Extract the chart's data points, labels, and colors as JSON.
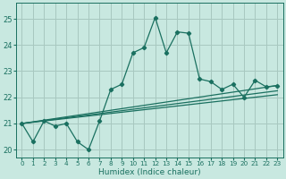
{
  "xlabel": "Humidex (Indice chaleur)",
  "bg_color": "#c8e8e0",
  "grid_color": "#a8c8c0",
  "line_color": "#1a7060",
  "ylim": [
    19.7,
    25.6
  ],
  "xlim": [
    -0.5,
    23.5
  ],
  "yticks": [
    20,
    21,
    22,
    23,
    24,
    25
  ],
  "xticks": [
    0,
    1,
    2,
    3,
    4,
    5,
    6,
    7,
    8,
    9,
    10,
    11,
    12,
    13,
    14,
    15,
    16,
    17,
    18,
    19,
    20,
    21,
    22,
    23
  ],
  "series1_x": [
    0,
    1,
    2,
    3,
    4,
    5,
    6,
    7,
    8,
    9,
    10,
    11,
    12,
    13,
    14,
    15,
    16,
    17,
    18,
    19,
    20,
    21,
    22,
    23
  ],
  "series1_y": [
    21.0,
    20.3,
    21.1,
    20.9,
    21.0,
    20.3,
    20.0,
    21.1,
    22.3,
    22.5,
    23.7,
    23.9,
    25.05,
    23.7,
    24.5,
    24.45,
    22.7,
    22.6,
    22.3,
    22.5,
    22.0,
    22.65,
    22.4,
    22.45
  ],
  "series2_x": [
    0,
    23
  ],
  "series2_y": [
    21.0,
    22.45
  ],
  "series3_x": [
    0,
    23
  ],
  "series3_y": [
    21.0,
    22.25
  ],
  "series4_x": [
    0,
    23
  ],
  "series4_y": [
    21.0,
    22.1
  ]
}
